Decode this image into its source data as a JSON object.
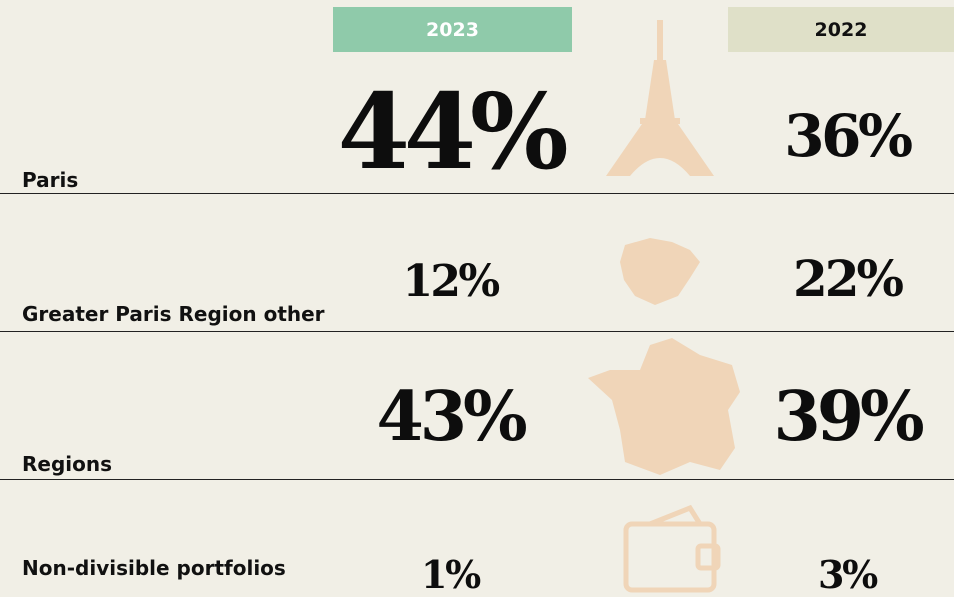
{
  "headers": [
    "2023",
    "2022"
  ],
  "rows": [
    {
      "label": "Paris",
      "values": [
        "44%",
        "36%"
      ]
    },
    {
      "label": "Greater Paris Region other",
      "values": [
        "12%",
        "22%"
      ]
    },
    {
      "label": "Regions",
      "values": [
        "43%",
        "39%"
      ]
    },
    {
      "label": "Non-divisible portfolios",
      "values": [
        "1%",
        "3%"
      ]
    }
  ]
}
